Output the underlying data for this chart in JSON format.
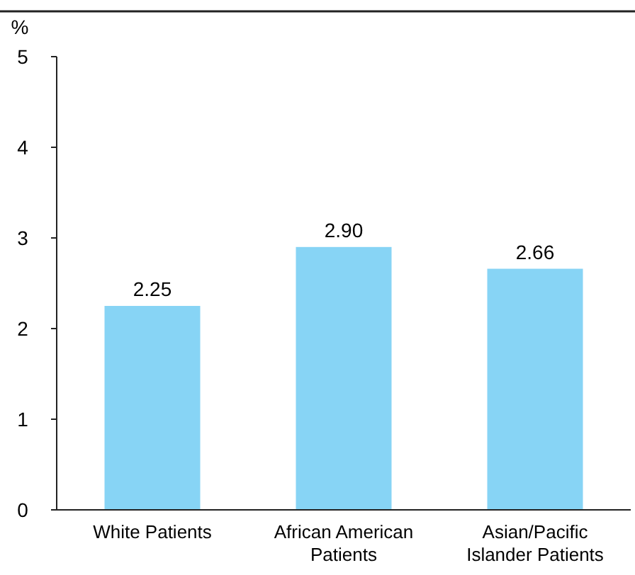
{
  "chart_data": {
    "type": "bar",
    "ylabel": "%",
    "categories": [
      "White Patients",
      "African American Patients",
      "Asian/Pacific Islander Patients"
    ],
    "values": [
      2.25,
      2.9,
      2.66
    ],
    "value_labels": [
      "2.25",
      "2.90",
      "2.66"
    ],
    "color": "#87d4f5",
    "ylim": [
      0,
      5
    ],
    "yticks": [
      0,
      1,
      2,
      3,
      4,
      5
    ],
    "grid": false
  }
}
